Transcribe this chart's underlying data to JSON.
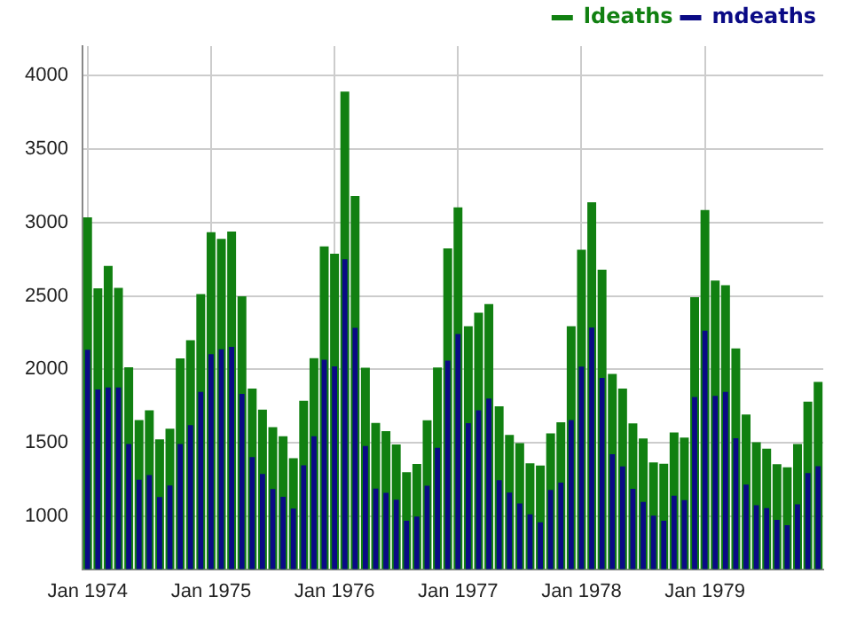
{
  "chart_data": {
    "type": "bar",
    "categories": [
      "Jan 1974",
      null,
      null,
      null,
      null,
      null,
      null,
      null,
      null,
      null,
      null,
      null,
      "Jan 1975",
      null,
      null,
      null,
      null,
      null,
      null,
      null,
      null,
      null,
      null,
      null,
      "Jan 1976",
      null,
      null,
      null,
      null,
      null,
      null,
      null,
      null,
      null,
      null,
      null,
      "Jan 1977",
      null,
      null,
      null,
      null,
      null,
      null,
      null,
      null,
      null,
      null,
      null,
      "Jan 1978",
      null,
      null,
      null,
      null,
      null,
      null,
      null,
      null,
      null,
      null,
      null,
      "Jan 1979",
      null,
      null,
      null,
      null,
      null,
      null,
      null,
      null,
      null,
      null,
      null
    ],
    "series": [
      {
        "name": "ldeaths",
        "color": "#118011",
        "values": [
          3035,
          2552,
          2704,
          2554,
          2014,
          1655,
          1721,
          1524,
          1596,
          2074,
          2199,
          2512,
          2933,
          2889,
          2938,
          2497,
          1870,
          1726,
          1607,
          1545,
          1396,
          1787,
          2076,
          2837,
          2787,
          3891,
          3179,
          2011,
          1636,
          1580,
          1489,
          1300,
          1356,
          1653,
          2013,
          2823,
          3102,
          2294,
          2385,
          2444,
          1748,
          1554,
          1498,
          1361,
          1346,
          1564,
          1640,
          2293,
          2815,
          3137,
          2679,
          1969,
          1870,
          1633,
          1529,
          1366,
          1357,
          1570,
          1535,
          2491,
          3084,
          2605,
          2573,
          2143,
          1693,
          1504,
          1461,
          1354,
          1333,
          1492,
          1781,
          1915
        ]
      },
      {
        "name": "mdeaths",
        "color": "#0a0a85",
        "values": [
          2134,
          1863,
          1877,
          1877,
          1492,
          1249,
          1280,
          1131,
          1209,
          1492,
          1621,
          1846,
          2103,
          2137,
          2153,
          1833,
          1403,
          1288,
          1186,
          1133,
          1053,
          1347,
          1545,
          2066,
          2020,
          2750,
          2283,
          1479,
          1189,
          1160,
          1113,
          970,
          999,
          1208,
          1467,
          2059,
          2240,
          1634,
          1722,
          1801,
          1246,
          1162,
          1087,
          1013,
          959,
          1179,
          1229,
          1655,
          2019,
          2284,
          1942,
          1423,
          1340,
          1187,
          1098,
          1004,
          970,
          1140,
          1110,
          1812,
          2263,
          1820,
          1846,
          1531,
          1215,
          1075,
          1056,
          975,
          940,
          1081,
          1294,
          1341
        ]
      }
    ],
    "ylim": [
      640,
      4200
    ],
    "yticks": [
      1000,
      1500,
      2000,
      2500,
      3000,
      3500,
      4000
    ],
    "grid": true,
    "legend": "top"
  }
}
